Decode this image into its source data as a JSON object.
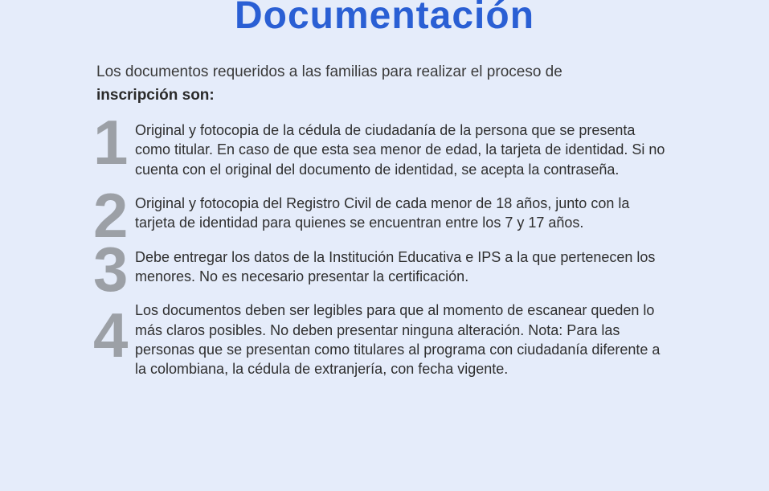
{
  "title": "Documentación",
  "intro_text": "Los documentos requeridos a las familias para realizar el proceso de",
  "intro_bold": "inscripción son:",
  "items": [
    {
      "number": "1",
      "text": "Original y fotocopia de la cédula de ciudadanía de la persona que se presenta como titular. En caso de que esta sea menor de edad, la tarjeta de identidad. Si no cuenta con el original del documento de identidad, se acepta la contraseña."
    },
    {
      "number": "2",
      "text": "Original y fotocopia del Registro Civil de cada menor de 18 años, junto con la tarjeta de identidad para quienes se encuentran entre los 7 y 17 años."
    },
    {
      "number": "3",
      "text": "Debe entregar los datos de la Institución Educativa e IPS a la que pertenecen los menores. No es necesario presentar la certificación."
    },
    {
      "number": "4",
      "text": "Los documentos deben ser legibles para que al momento de escanear queden lo más claros posibles. No deben presentar ninguna alteración. Nota: Para las personas que se presentan como titulares al programa con ciudadanía diferente a la colombiana, la cédula de extranjería, con fecha vigente."
    }
  ],
  "colors": {
    "background": "#e5ecfa",
    "title": "#2a5fd4",
    "body_text": "#2f2f2f",
    "number": "#9ca0a6"
  },
  "typography": {
    "title_fontsize": 48,
    "intro_fontsize": 19,
    "item_fontsize": 18,
    "number_fontsize": 78
  }
}
